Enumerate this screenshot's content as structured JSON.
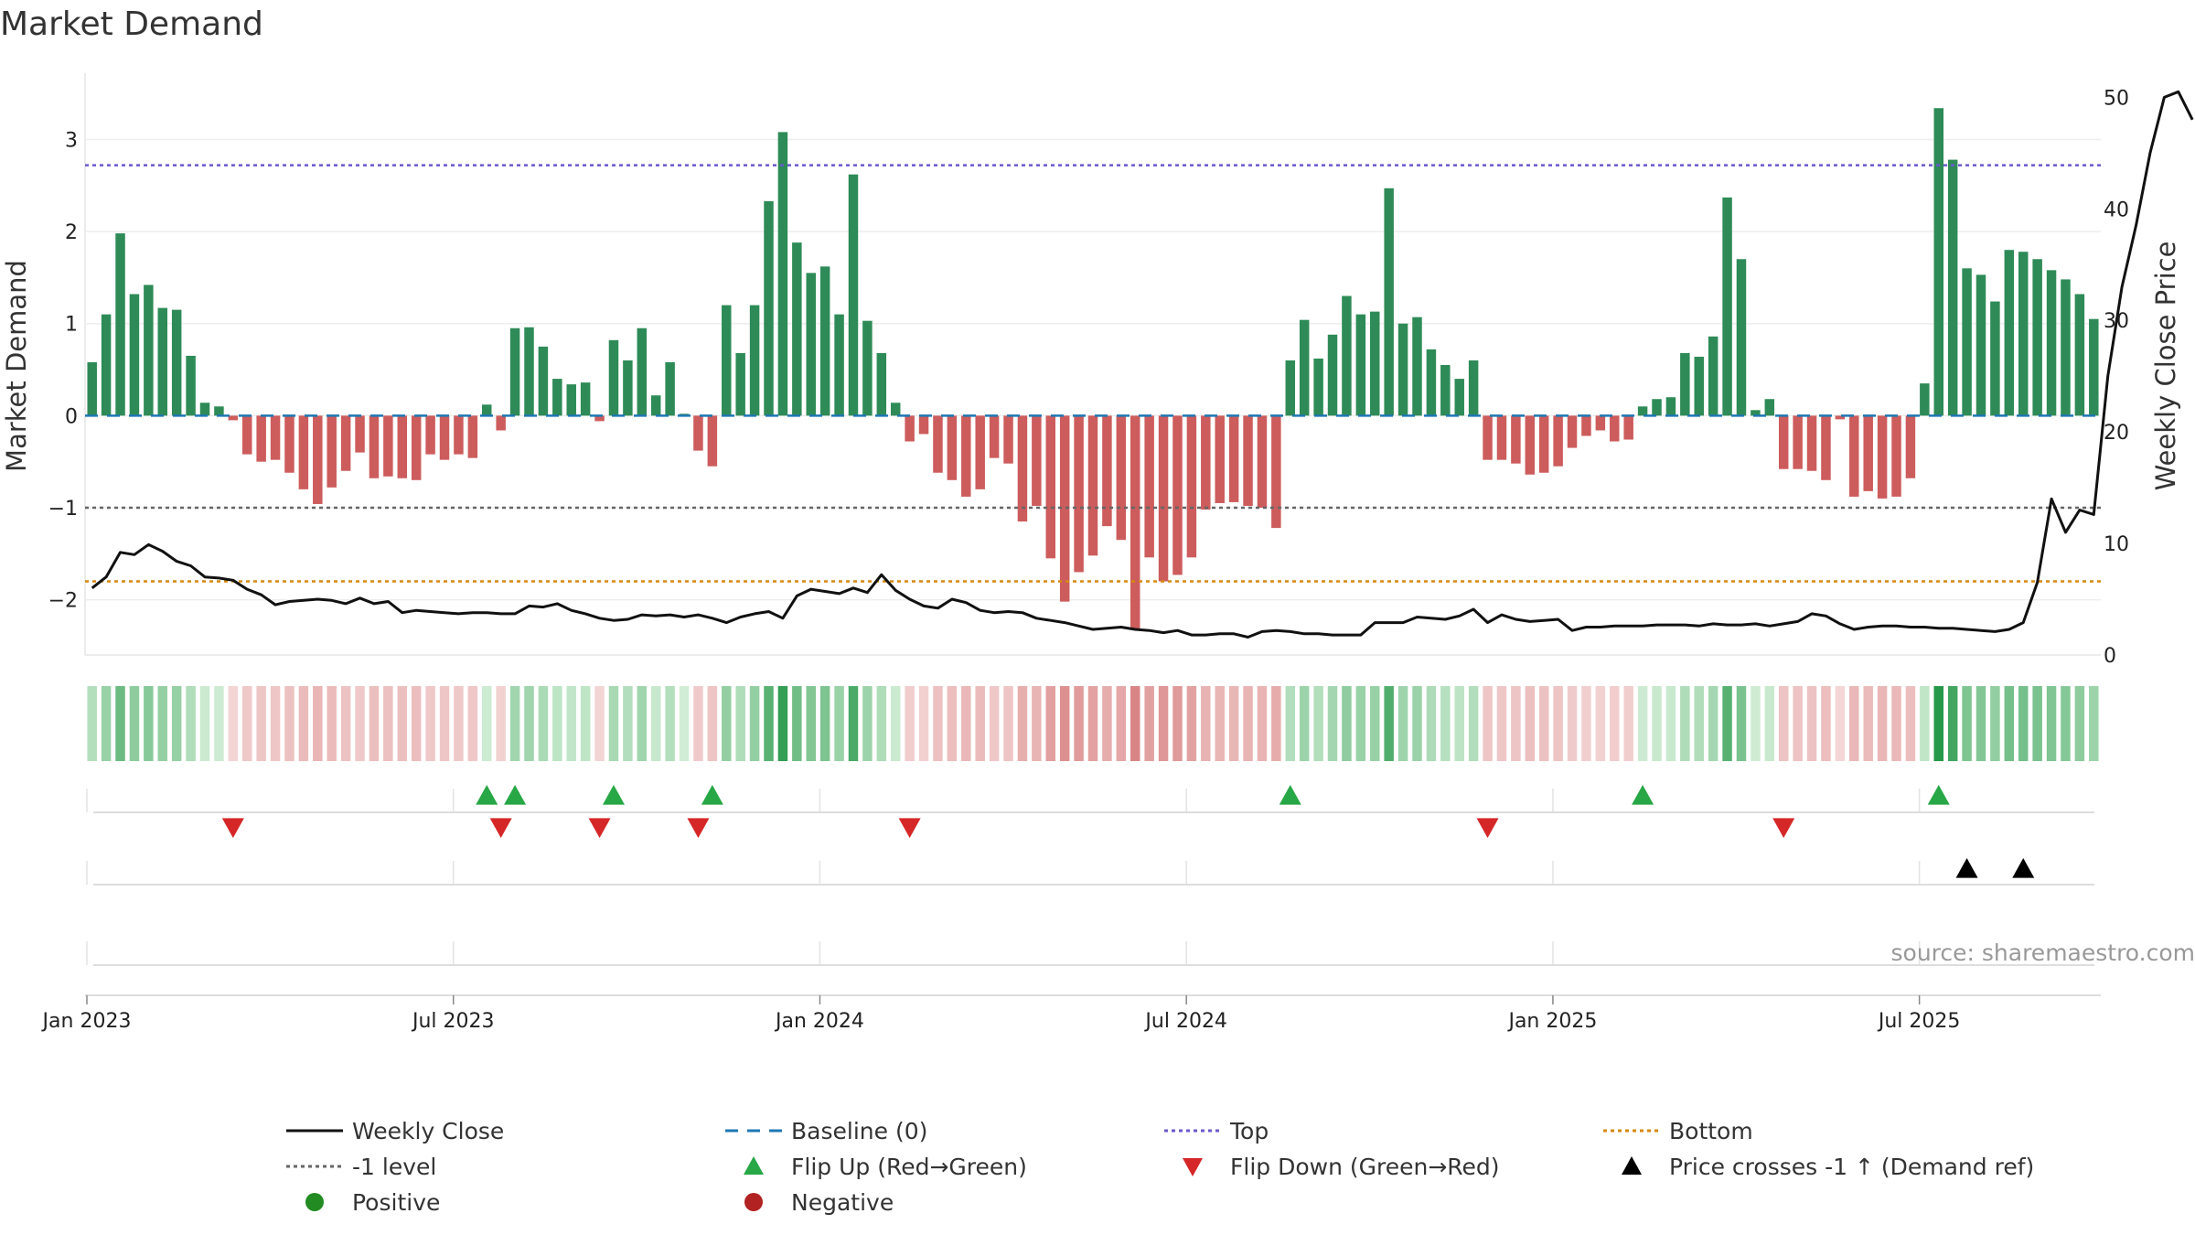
{
  "chart_data": {
    "type": "bar",
    "title": "Market Demand",
    "ylabel": "Market Demand",
    "y2label": "Weekly Close Price",
    "ylim": [
      -2.6,
      3.7
    ],
    "y2lim": [
      0,
      52
    ],
    "yticks": [
      {
        "v": 3,
        "label": "3"
      },
      {
        "v": 2,
        "label": "2"
      },
      {
        "v": 1,
        "label": "1"
      },
      {
        "v": 0,
        "label": "0"
      },
      {
        "v": -1,
        "label": "−1"
      },
      {
        "v": -2,
        "label": "−2"
      }
    ],
    "y2ticks": [
      {
        "v": 0,
        "label": "0"
      },
      {
        "v": 10,
        "label": "10"
      },
      {
        "v": 20,
        "label": "20"
      },
      {
        "v": 30,
        "label": "30"
      },
      {
        "v": 40,
        "label": "40"
      },
      {
        "v": 50,
        "label": "50"
      }
    ],
    "x_ticks": [
      {
        "week": 1,
        "label": "Jan 2023"
      },
      {
        "week": 27,
        "label": "Jul 2023"
      },
      {
        "week": 53,
        "label": "Jan 2024"
      },
      {
        "week": 79,
        "label": "Jul 2024"
      },
      {
        "week": 105,
        "label": "Jan 2025"
      },
      {
        "week": 131,
        "label": "Jul 2025"
      }
    ],
    "weeks": 143,
    "demand": [
      0.58,
      1.1,
      1.98,
      1.32,
      1.42,
      1.17,
      1.15,
      0.65,
      0.14,
      0.1,
      -0.05,
      -0.42,
      -0.5,
      -0.48,
      -0.62,
      -0.8,
      -0.96,
      -0.78,
      -0.6,
      -0.4,
      -0.68,
      -0.66,
      -0.68,
      -0.7,
      -0.42,
      -0.48,
      -0.42,
      -0.46,
      0.12,
      -0.16,
      0.95,
      0.96,
      0.75,
      0.4,
      0.34,
      0.36,
      -0.06,
      0.82,
      0.6,
      0.95,
      0.22,
      0.58,
      0.02,
      -0.38,
      -0.55,
      1.2,
      0.68,
      1.2,
      2.33,
      3.08,
      1.88,
      1.55,
      1.62,
      1.1,
      2.62,
      1.03,
      0.68,
      0.14,
      -0.28,
      -0.2,
      -0.62,
      -0.7,
      -0.88,
      -0.8,
      -0.46,
      -0.52,
      -1.15,
      -0.98,
      -1.55,
      -2.02,
      -1.7,
      -1.52,
      -1.2,
      -1.35,
      -2.32,
      -1.54,
      -1.8,
      -1.73,
      -1.54,
      -1.02,
      -0.95,
      -0.94,
      -0.98,
      -1.0,
      -1.22,
      0.6,
      1.04,
      0.62,
      0.88,
      1.3,
      1.1,
      1.13,
      2.47,
      1.0,
      1.07,
      0.72,
      0.55,
      0.4,
      0.6,
      -0.48,
      -0.48,
      -0.52,
      -0.64,
      -0.62,
      -0.55,
      -0.35,
      -0.22,
      -0.16,
      -0.28,
      -0.26,
      0.1,
      0.18,
      0.2,
      0.68,
      0.64,
      0.86,
      2.37,
      1.7,
      0.06,
      0.18,
      -0.58,
      -0.58,
      -0.6,
      -0.7,
      -0.04,
      -0.88,
      -0.82,
      -0.9,
      -0.88,
      -0.68,
      0.35,
      3.34,
      2.78,
      1.6,
      1.53,
      1.24,
      1.8,
      1.78,
      1.7,
      1.58,
      1.48,
      1.32,
      1.05
    ],
    "weekly_close": [
      6,
      7,
      9.2,
      9,
      9.9,
      9.3,
      8.4,
      8,
      7,
      6.9,
      6.7,
      5.9,
      5.4,
      4.5,
      4.8,
      4.9,
      5,
      4.9,
      4.6,
      5.1,
      4.6,
      4.8,
      3.8,
      4,
      3.9,
      3.8,
      3.7,
      3.8,
      3.8,
      3.7,
      3.7,
      4.4,
      4.3,
      4.6,
      4,
      3.7,
      3.3,
      3.1,
      3.2,
      3.6,
      3.5,
      3.6,
      3.4,
      3.6,
      3.3,
      2.9,
      3.4,
      3.7,
      3.9,
      3.3,
      5.3,
      5.9,
      5.7,
      5.5,
      6,
      5.6,
      7.2,
      5.8,
      5,
      4.4,
      4.2,
      5,
      4.7,
      4,
      3.8,
      3.9,
      3.8,
      3.3,
      3.1,
      2.9,
      2.6,
      2.3,
      2.4,
      2.5,
      2.3,
      2.2,
      2,
      2.2,
      1.8,
      1.8,
      1.9,
      1.9,
      1.6,
      2.1,
      2.2,
      2.1,
      1.9,
      1.9,
      1.8,
      1.8,
      1.8,
      2.9,
      2.9,
      2.9,
      3.4,
      3.3,
      3.2,
      3.5,
      4.1,
      2.9,
      3.6,
      3.2,
      3,
      3.1,
      3.2,
      2.2,
      2.5,
      2.5,
      2.6,
      2.6,
      2.6,
      2.7,
      2.7,
      2.7,
      2.6,
      2.8,
      2.7,
      2.7,
      2.8,
      2.6,
      2.8,
      3,
      3.7,
      3.5,
      2.8,
      2.3,
      2.5,
      2.6,
      2.6,
      2.5,
      2.5,
      2.4,
      2.4,
      2.3,
      2.2,
      2.1,
      2.3,
      2.9,
      6.5,
      14,
      11,
      13,
      12.6,
      25,
      33,
      38.5,
      45,
      50,
      50.5,
      48
    ],
    "top_level": 2.72,
    "minus1_level": -1.0,
    "bottom_level": -1.8,
    "flip_up_weeks": [
      29,
      31,
      38,
      45,
      86,
      111,
      132
    ],
    "flip_down_weeks": [
      11,
      30,
      37,
      44,
      59,
      100,
      121
    ],
    "price_cross_weeks": [
      134,
      138
    ],
    "source": "source: sharemaestro.com",
    "legend": [
      {
        "label": "Weekly Close",
        "kind": "line-solid",
        "color": "#111111"
      },
      {
        "label": "Baseline (0)",
        "kind": "line-dash",
        "color": "#1f77b4"
      },
      {
        "label": "Top",
        "kind": "line-dot",
        "color": "#6a5acd"
      },
      {
        "label": "Bottom",
        "kind": "line-dot",
        "color": "#d68910"
      },
      {
        "label": "-1 level",
        "kind": "line-dot",
        "color": "#666666"
      },
      {
        "label": "Flip Up (Red→Green)",
        "kind": "tri-up",
        "color": "#27a745"
      },
      {
        "label": "Flip Down (Green→Red)",
        "kind": "tri-down",
        "color": "#d62728"
      },
      {
        "label": "Price crosses -1 ↑ (Demand ref)",
        "kind": "tri-up",
        "color": "#000000"
      },
      {
        "label": "Positive",
        "kind": "dot",
        "color": "#228b22"
      },
      {
        "label": "Negative",
        "kind": "dot",
        "color": "#b22222"
      }
    ]
  },
  "colors": {
    "positive_bar": "#2e8b57",
    "negative_bar": "#cd5c5c",
    "flip_up": "#27a745",
    "flip_down": "#d62728",
    "cross": "#000000"
  }
}
